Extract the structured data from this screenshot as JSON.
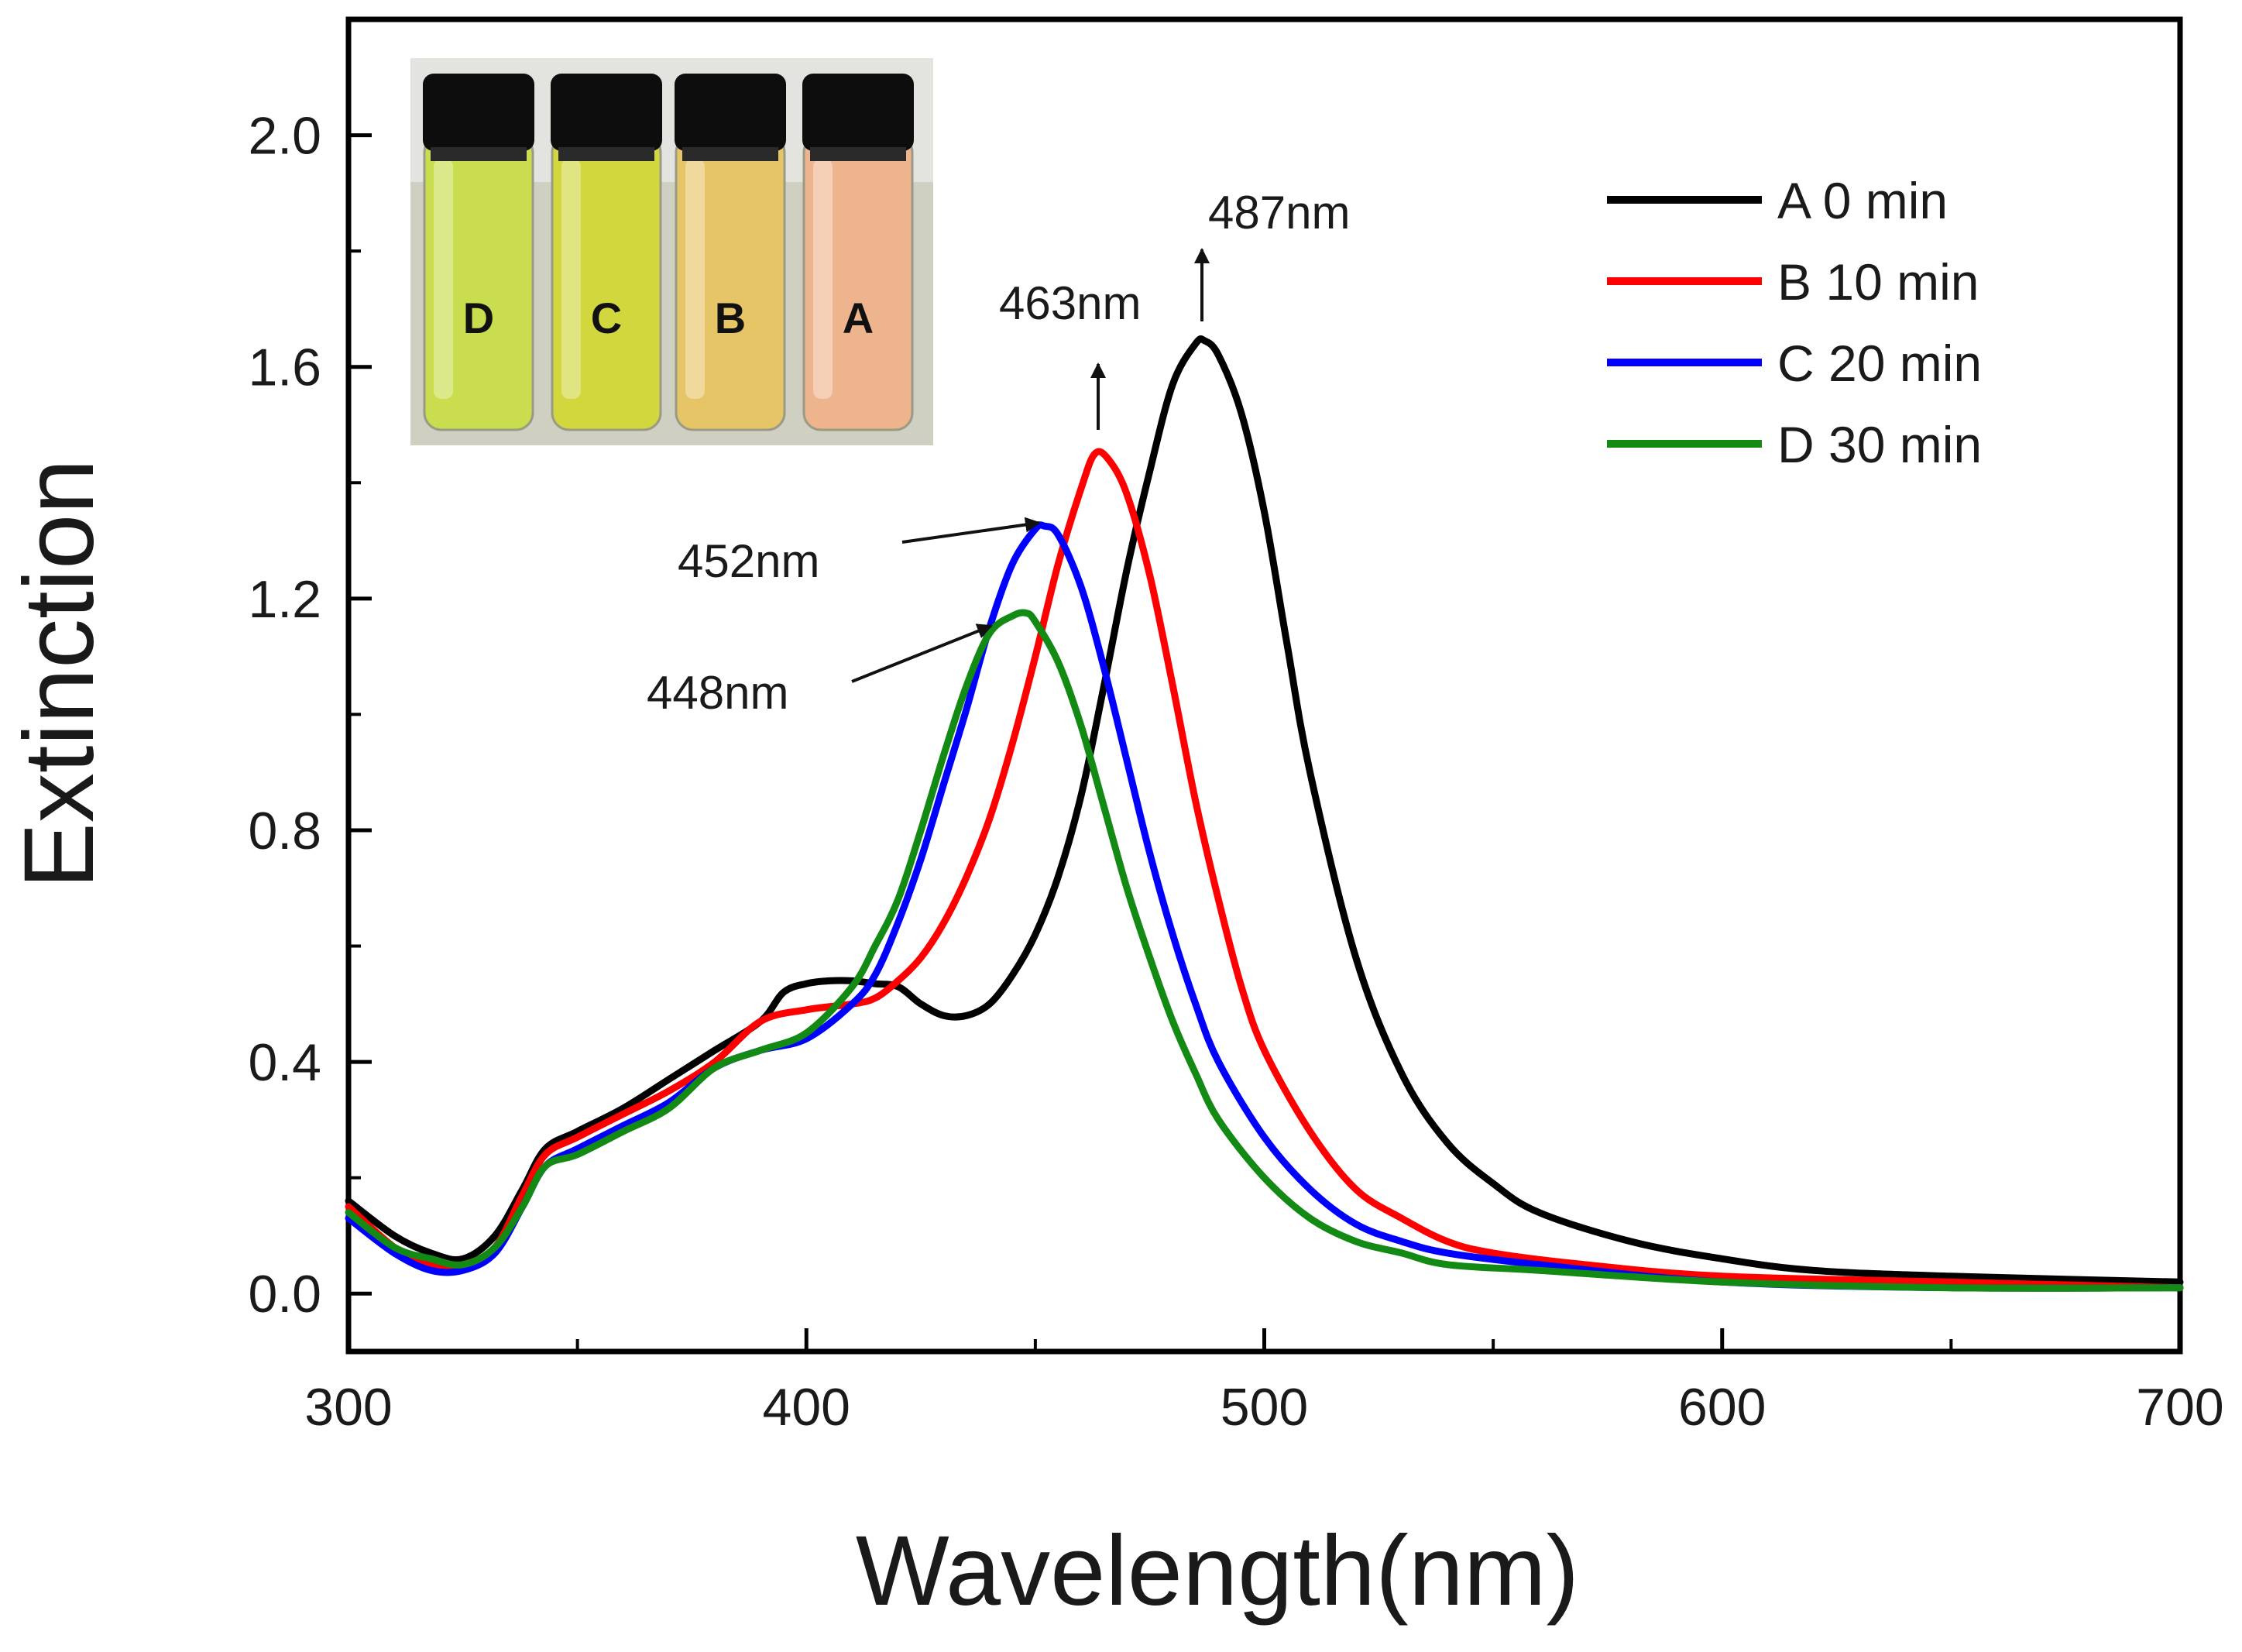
{
  "chart_data": {
    "type": "line",
    "title": "",
    "xlabel": "Wavelength(nm)",
    "ylabel": "Extinction",
    "xlim": [
      300,
      700
    ],
    "ylim": [
      -0.1,
      2.2
    ],
    "xticks": [
      300,
      400,
      500,
      600,
      700
    ],
    "xtick_labels": [
      "300",
      "400",
      "500",
      "600",
      "700"
    ],
    "yticks": [
      0.0,
      0.4,
      0.8,
      1.2,
      1.6,
      2.0
    ],
    "ytick_labels": [
      "0.0",
      "0.4",
      "0.8",
      "1.2",
      "1.6",
      "2.0"
    ],
    "grid": false,
    "legend_position": "top-right",
    "series": [
      {
        "name": "A 0 min",
        "color": "#000000",
        "x": [
          300,
          310,
          318,
          325,
          332,
          338,
          343,
          350,
          360,
          370,
          380,
          390,
          395,
          400,
          405,
          410,
          415,
          420,
          425,
          430,
          435,
          440,
          445,
          450,
          455,
          460,
          465,
          470,
          475,
          480,
          485,
          487,
          490,
          495,
          500,
          505,
          510,
          520,
          530,
          540,
          550,
          560,
          580,
          600,
          620,
          650,
          700
        ],
        "y": [
          0.16,
          0.1,
          0.07,
          0.06,
          0.1,
          0.18,
          0.25,
          0.28,
          0.32,
          0.37,
          0.42,
          0.47,
          0.52,
          0.535,
          0.54,
          0.54,
          0.535,
          0.53,
          0.5,
          0.48,
          0.48,
          0.5,
          0.55,
          0.62,
          0.72,
          0.86,
          1.05,
          1.25,
          1.42,
          1.57,
          1.64,
          1.645,
          1.62,
          1.52,
          1.35,
          1.12,
          0.9,
          0.58,
          0.38,
          0.26,
          0.19,
          0.14,
          0.09,
          0.06,
          0.04,
          0.03,
          0.02
        ]
      },
      {
        "name": "B 10 min",
        "color": "#ff0000",
        "x": [
          300,
          310,
          318,
          325,
          332,
          338,
          343,
          350,
          360,
          370,
          380,
          390,
          400,
          410,
          415,
          420,
          425,
          430,
          435,
          440,
          445,
          450,
          455,
          460,
          463,
          466,
          470,
          475,
          480,
          485,
          490,
          495,
          500,
          510,
          520,
          530,
          540,
          550,
          570,
          600,
          650,
          700
        ],
        "y": [
          0.15,
          0.08,
          0.05,
          0.05,
          0.08,
          0.17,
          0.24,
          0.27,
          0.31,
          0.35,
          0.4,
          0.47,
          0.49,
          0.5,
          0.51,
          0.54,
          0.58,
          0.64,
          0.72,
          0.82,
          0.95,
          1.1,
          1.26,
          1.39,
          1.45,
          1.44,
          1.38,
          1.24,
          1.05,
          0.85,
          0.68,
          0.53,
          0.42,
          0.28,
          0.18,
          0.13,
          0.09,
          0.07,
          0.05,
          0.03,
          0.02,
          0.01
        ]
      },
      {
        "name": "C 20 min",
        "color": "#0000ff",
        "x": [
          300,
          310,
          318,
          325,
          332,
          338,
          343,
          350,
          360,
          370,
          380,
          390,
          400,
          410,
          415,
          420,
          425,
          430,
          435,
          440,
          445,
          450,
          452,
          455,
          460,
          465,
          470,
          475,
          480,
          485,
          490,
          500,
          510,
          520,
          530,
          540,
          560,
          600,
          650,
          700
        ],
        "y": [
          0.13,
          0.07,
          0.04,
          0.04,
          0.07,
          0.15,
          0.22,
          0.25,
          0.29,
          0.33,
          0.39,
          0.42,
          0.44,
          0.5,
          0.55,
          0.64,
          0.75,
          0.88,
          1.01,
          1.15,
          1.26,
          1.32,
          1.325,
          1.31,
          1.22,
          1.08,
          0.92,
          0.76,
          0.62,
          0.5,
          0.4,
          0.27,
          0.18,
          0.12,
          0.09,
          0.07,
          0.05,
          0.02,
          0.01,
          0.01
        ]
      },
      {
        "name": "D 30 min",
        "color": "#138a13",
        "x": [
          300,
          310,
          318,
          325,
          332,
          338,
          343,
          350,
          360,
          370,
          380,
          390,
          400,
          410,
          415,
          420,
          425,
          430,
          435,
          440,
          445,
          448,
          450,
          455,
          460,
          465,
          470,
          475,
          480,
          485,
          490,
          500,
          510,
          520,
          530,
          540,
          560,
          600,
          650,
          700
        ],
        "y": [
          0.14,
          0.08,
          0.06,
          0.05,
          0.08,
          0.15,
          0.22,
          0.24,
          0.28,
          0.32,
          0.39,
          0.42,
          0.45,
          0.53,
          0.6,
          0.68,
          0.8,
          0.93,
          1.05,
          1.14,
          1.17,
          1.175,
          1.16,
          1.09,
          0.98,
          0.84,
          0.7,
          0.58,
          0.47,
          0.38,
          0.3,
          0.2,
          0.13,
          0.09,
          0.07,
          0.05,
          0.04,
          0.02,
          0.01,
          0.01
        ]
      }
    ],
    "annotations": [
      {
        "text": "487nm",
        "x": 487,
        "y": 1.645
      },
      {
        "text": "463nm",
        "x": 463,
        "y": 1.45
      },
      {
        "text": "452nm",
        "x": 452,
        "y": 1.325
      },
      {
        "text": "448nm",
        "x": 448,
        "y": 1.175
      }
    ],
    "inset": {
      "type": "photo",
      "vials": [
        {
          "label": "D",
          "color": "#c9dd4e"
        },
        {
          "label": "C",
          "color": "#d2d73e"
        },
        {
          "label": "B",
          "color": "#e6c567"
        },
        {
          "label": "A",
          "color": "#eeb48e"
        }
      ]
    }
  }
}
